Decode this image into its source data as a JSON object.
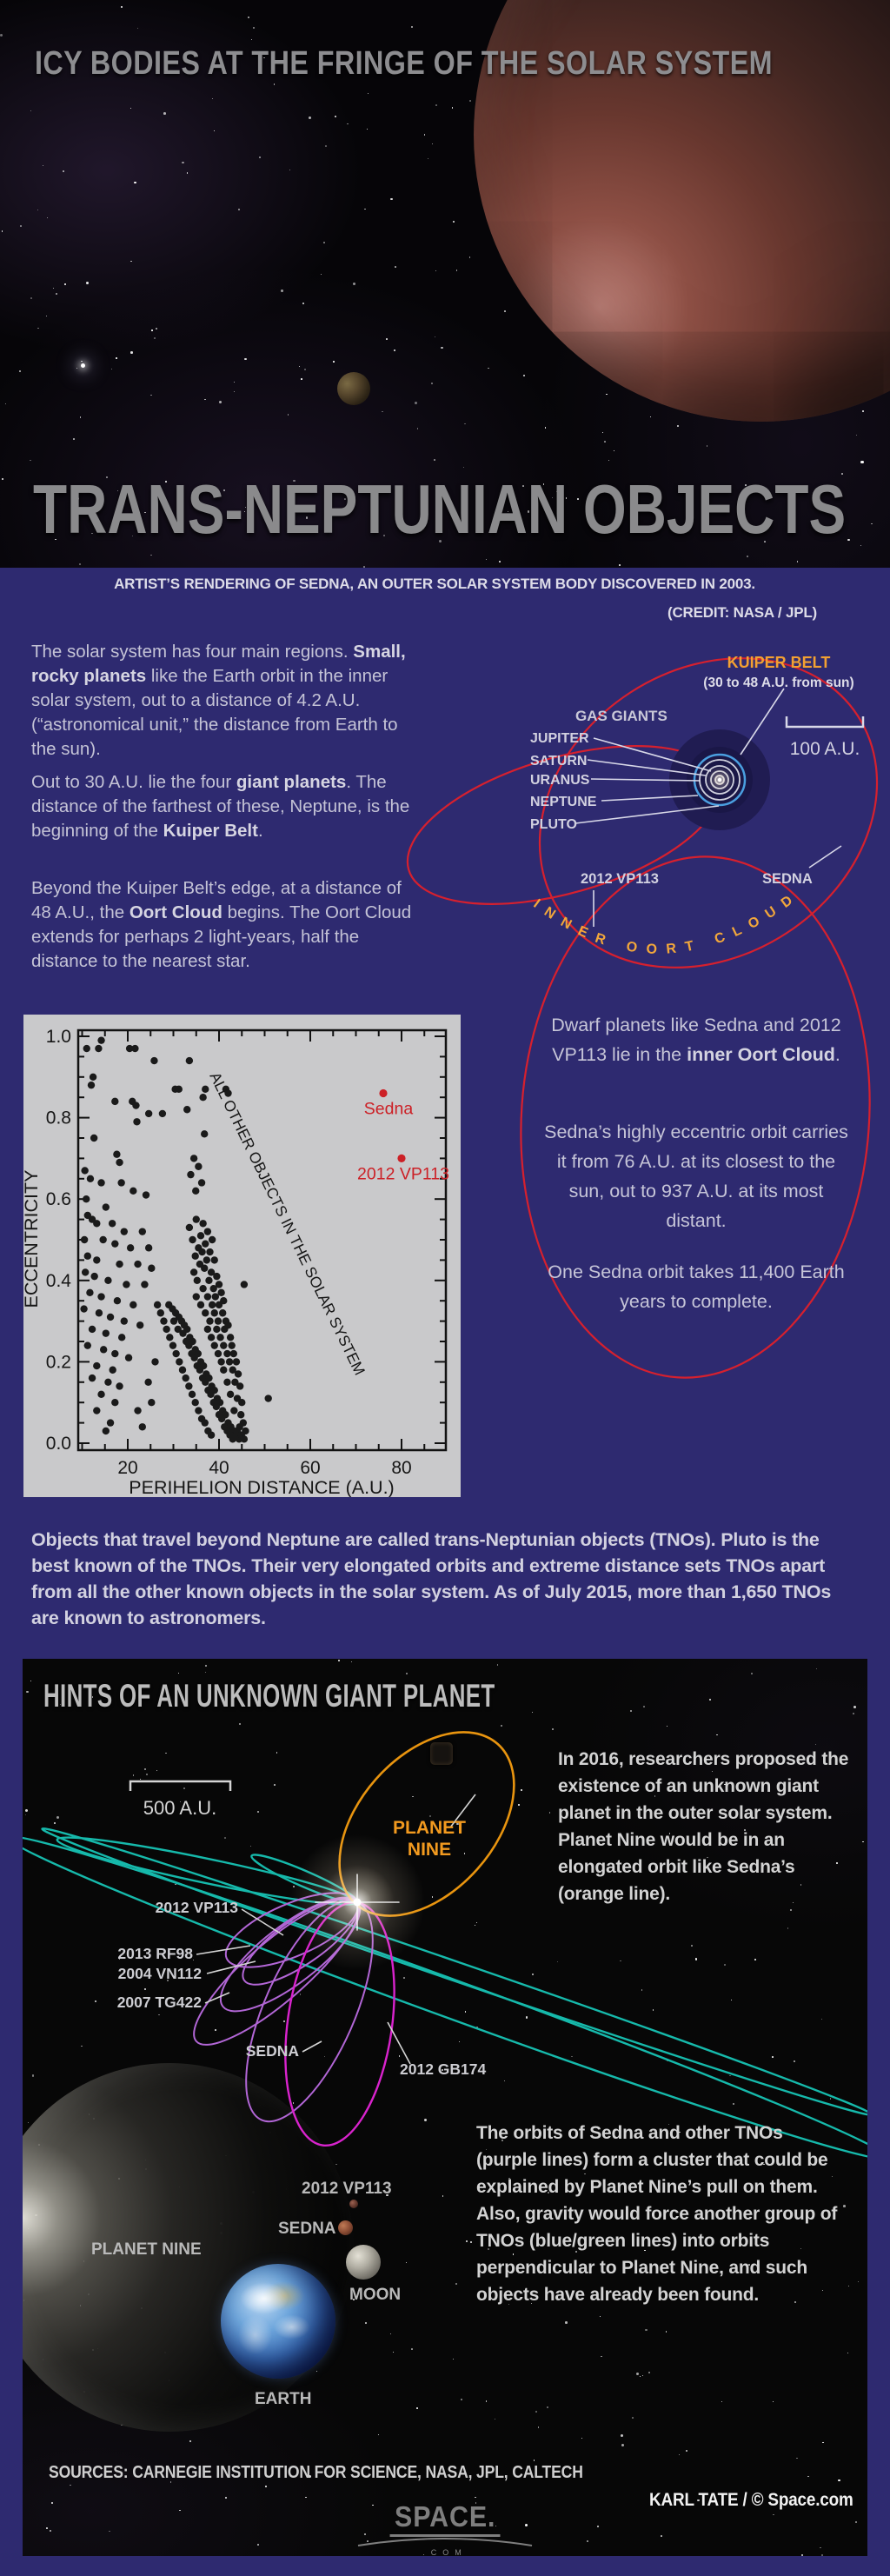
{
  "colors": {
    "background_blue": "#2e2a70",
    "panel_black": "#070707",
    "title_gray": "#8a8a8c",
    "body_gray": "#c4c3d6",
    "accent_orange": "#f2a032",
    "orbit_red": "#d6202e",
    "kuiper_blue": "#4a9fe0",
    "teal_orbit": "#16b9ab",
    "purple_orbit": "#b266d6",
    "magenta_orbit": "#d923cd",
    "plot_bg": "#c9c9cb",
    "plot_red": "#cc2026"
  },
  "hero": {
    "kicker": "ICY BODIES AT THE FRINGE OF THE SOLAR SYSTEM",
    "title": "TRANS-NEPTUNIAN OBJECTS"
  },
  "caption": {
    "line1": "ARTIST’S RENDERING OF SEDNA, AN OUTER SOLAR SYSTEM BODY DISCOVERED IN 2003.",
    "line2": "(CREDIT: NASA / JPL)"
  },
  "intro": {
    "p1": [
      {
        "t": "The solar system has four main regions. "
      },
      {
        "t": "Small, rocky planets",
        "b": true
      },
      {
        "t": " like the Earth orbit in the inner solar system, out to a distance of 4.2 A.U. (“astronomical unit,” the distance from Earth to the sun)."
      }
    ],
    "p2": [
      {
        "t": "Out to 30 A.U. lie the four "
      },
      {
        "t": "giant planets",
        "b": true
      },
      {
        "t": ".  The distance of the farthest of these, Neptune, is the beginning of the "
      },
      {
        "t": "Kuiper Belt",
        "b": true
      },
      {
        "t": "."
      }
    ],
    "p3": [
      {
        "t": "Beyond the Kuiper Belt’s edge, at a distance of 48 A.U., the "
      },
      {
        "t": "Oort Cloud",
        "b": true
      },
      {
        "t": " begins. The Oort Cloud extends for perhaps 2 light-years, half the distance to the nearest star."
      }
    ]
  },
  "d1": {
    "kuiper_belt": "KUIPER BELT",
    "kuiper_sub": "(30 to 48 A.U. from sun)",
    "gas_giants": "GAS GIANTS",
    "planets": [
      "JUPITER",
      "SATURN",
      "URANUS",
      "NEPTUNE",
      "PLUTO"
    ],
    "scale_label": "100 A.U.",
    "vp113": "2012 VP113",
    "sedna": "SEDNA",
    "oort_arc": "INNER  OORT  CLOUD"
  },
  "oort_notes": {
    "n1": [
      {
        "t": "Dwarf planets like Sedna and 2012 VP113 lie in the "
      },
      {
        "t": "inner Oort Cloud",
        "b": true
      },
      {
        "t": "."
      }
    ],
    "n2": "Sedna’s highly eccentric orbit carries it from 76 A.U. at its closest to the sun, out to 937 A.U. at its most distant.",
    "n3": "One Sedna orbit takes 11,400 Earth years to complete."
  },
  "tno_paragraph": "Objects that travel beyond Neptune are called trans-Neptunian objects (TNOs). Pluto is the best known of the TNOs. Their very elongated orbits and extreme distance sets TNOs apart from all the other known objects in the solar system. As of July 2015, more than 1,650 TNOs are known to astronomers.",
  "p9": {
    "title": "HINTS OF AN UNKNOWN GIANT PLANET",
    "scale_label": "500 A.U.",
    "planet_nine_line1": "PLANET",
    "planet_nine_line2": "NINE",
    "intro": "In 2016, researchers proposed the existence of an unknown giant planet in the outer solar system. Planet Nine would be in an elongated orbit like Sedna’s (orange line).",
    "orbit_labels": {
      "vp113": "2012 VP113",
      "rf98": "2013 RF98",
      "vn112": "2004 VN112",
      "tg422": "2007 TG422",
      "sedna": "SEDNA",
      "gb174": "2012 GB174"
    },
    "compare_labels": {
      "vp113": "2012 VP113",
      "sedna": "SEDNA",
      "planet_nine": "PLANET NINE",
      "moon": "MOON",
      "earth": "EARTH"
    },
    "cluster_text": "The orbits of Sedna and other TNOs (purple lines) form a cluster that could be explained by Planet Nine’s pull on them. Also, gravity would force another group of TNOs (blue/green lines) into orbits perpendicular to Planet Nine, and such objects have already been found."
  },
  "footer": {
    "sources": "SOURCES: CARNEGIE INSTITUTION FOR SCIENCE, NASA, JPL, CALTECH",
    "credit": "KARL TATE / © Space.com",
    "logo_main": "SPACE.",
    "logo_sub": ".COM"
  },
  "chart_data": {
    "type": "scatter",
    "title": "",
    "xlabel": "PERIHELION DISTANCE (A.U.)",
    "ylabel": "ECCENTRICITY",
    "xlim": [
      9.1,
      89.7
    ],
    "ylim": [
      0.0,
      1.015
    ],
    "xticks": [
      20,
      40,
      60,
      80
    ],
    "yticks": [
      0.0,
      0.2,
      0.4,
      0.6,
      0.8,
      1.0
    ],
    "grid": false,
    "annotation": "ALL OTHER OBJECTS IN THE SOLAR SYSTEM",
    "highlight": [
      {
        "name": "Sedna",
        "x": 76,
        "y": 0.86
      },
      {
        "name": "2012 VP113",
        "x": 80,
        "y": 0.7
      }
    ],
    "points": [
      [
        29,
        0.34
      ],
      [
        29.8,
        0.33
      ],
      [
        30.5,
        0.32
      ],
      [
        31.2,
        0.31
      ],
      [
        30.1,
        0.3
      ],
      [
        31.8,
        0.3
      ],
      [
        32.4,
        0.29
      ],
      [
        31,
        0.28
      ],
      [
        33,
        0.28
      ],
      [
        32.1,
        0.27
      ],
      [
        33.6,
        0.26
      ],
      [
        32.8,
        0.25
      ],
      [
        34.2,
        0.25
      ],
      [
        33.4,
        0.24
      ],
      [
        34.8,
        0.23
      ],
      [
        34,
        0.22
      ],
      [
        35.4,
        0.22
      ],
      [
        34.6,
        0.21
      ],
      [
        36,
        0.2
      ],
      [
        35.2,
        0.19
      ],
      [
        36.6,
        0.19
      ],
      [
        35.8,
        0.18
      ],
      [
        37.2,
        0.17
      ],
      [
        36.4,
        0.16
      ],
      [
        37.8,
        0.16
      ],
      [
        37,
        0.15
      ],
      [
        38.4,
        0.14
      ],
      [
        37.6,
        0.13
      ],
      [
        39,
        0.13
      ],
      [
        38.2,
        0.12
      ],
      [
        39.6,
        0.11
      ],
      [
        38.8,
        0.1
      ],
      [
        40.2,
        0.1
      ],
      [
        39.4,
        0.09
      ],
      [
        40.8,
        0.08
      ],
      [
        40,
        0.07
      ],
      [
        41.4,
        0.07
      ],
      [
        40.6,
        0.06
      ],
      [
        42,
        0.05
      ],
      [
        41.2,
        0.04
      ],
      [
        42.6,
        0.04
      ],
      [
        41.8,
        0.03
      ],
      [
        43.2,
        0.03
      ],
      [
        42.4,
        0.02
      ],
      [
        43.8,
        0.02
      ],
      [
        43,
        0.01
      ],
      [
        44.4,
        0.01
      ],
      [
        44,
        0.03
      ],
      [
        44.9,
        0.02
      ],
      [
        45.5,
        0.01
      ],
      [
        26.5,
        0.34
      ],
      [
        27.2,
        0.32
      ],
      [
        27.9,
        0.3
      ],
      [
        28.5,
        0.28
      ],
      [
        29.2,
        0.26
      ],
      [
        29.9,
        0.24
      ],
      [
        30.6,
        0.22
      ],
      [
        31.3,
        0.2
      ],
      [
        32,
        0.18
      ],
      [
        32.7,
        0.16
      ],
      [
        33.4,
        0.14
      ],
      [
        34.1,
        0.12
      ],
      [
        34.8,
        0.1
      ],
      [
        35.5,
        0.08
      ],
      [
        36.2,
        0.06
      ],
      [
        36.9,
        0.05
      ],
      [
        37.6,
        0.03
      ],
      [
        38.3,
        0.02
      ],
      [
        33.5,
        0.53
      ],
      [
        35,
        0.55
      ],
      [
        36.5,
        0.54
      ],
      [
        34.2,
        0.5
      ],
      [
        36,
        0.51
      ],
      [
        37.5,
        0.52
      ],
      [
        35.5,
        0.48
      ],
      [
        37,
        0.49
      ],
      [
        38.5,
        0.5
      ],
      [
        34.8,
        0.46
      ],
      [
        36.3,
        0.47
      ],
      [
        38,
        0.47
      ],
      [
        35.8,
        0.44
      ],
      [
        37.3,
        0.45
      ],
      [
        39,
        0.45
      ],
      [
        34.5,
        0.42
      ],
      [
        36.8,
        0.43
      ],
      [
        38.3,
        0.42
      ],
      [
        35.2,
        0.4
      ],
      [
        37.8,
        0.4
      ],
      [
        39.5,
        0.41
      ],
      [
        36.5,
        0.38
      ],
      [
        38.8,
        0.38
      ],
      [
        40,
        0.39
      ],
      [
        35,
        0.36
      ],
      [
        37.5,
        0.36
      ],
      [
        39.2,
        0.36
      ],
      [
        40.5,
        0.37
      ],
      [
        36,
        0.34
      ],
      [
        38.5,
        0.34
      ],
      [
        40,
        0.34
      ],
      [
        41,
        0.35
      ],
      [
        37,
        0.32
      ],
      [
        39,
        0.32
      ],
      [
        40.8,
        0.32
      ],
      [
        38,
        0.3
      ],
      [
        39.8,
        0.3
      ],
      [
        41.5,
        0.3
      ],
      [
        37.5,
        0.28
      ],
      [
        39.5,
        0.28
      ],
      [
        41.2,
        0.28
      ],
      [
        42,
        0.29
      ],
      [
        38.3,
        0.26
      ],
      [
        40.3,
        0.26
      ],
      [
        42.5,
        0.26
      ],
      [
        39,
        0.24
      ],
      [
        41,
        0.24
      ],
      [
        42.8,
        0.24
      ],
      [
        39.8,
        0.22
      ],
      [
        41.8,
        0.22
      ],
      [
        43.2,
        0.22
      ],
      [
        40.5,
        0.2
      ],
      [
        42.3,
        0.2
      ],
      [
        43.8,
        0.2
      ],
      [
        41,
        0.18
      ],
      [
        43,
        0.18
      ],
      [
        44.2,
        0.17
      ],
      [
        41.8,
        0.15
      ],
      [
        43.5,
        0.15
      ],
      [
        44.6,
        0.14
      ],
      [
        42.5,
        0.12
      ],
      [
        44,
        0.11
      ],
      [
        45,
        0.1
      ],
      [
        43.3,
        0.08
      ],
      [
        44.8,
        0.07
      ],
      [
        45.3,
        0.05
      ],
      [
        44.5,
        0.04
      ],
      [
        45.8,
        0.03
      ],
      [
        11,
        0.97
      ],
      [
        14.2,
        0.99
      ],
      [
        13.6,
        0.97
      ],
      [
        20.4,
        0.97
      ],
      [
        21.6,
        0.97
      ],
      [
        25.8,
        0.94
      ],
      [
        12.4,
        0.9
      ],
      [
        12,
        0.88
      ],
      [
        30.4,
        0.87
      ],
      [
        31.2,
        0.87
      ],
      [
        17.2,
        0.84
      ],
      [
        21,
        0.84
      ],
      [
        21.8,
        0.83
      ],
      [
        24.6,
        0.81
      ],
      [
        27.6,
        0.81
      ],
      [
        22,
        0.79
      ],
      [
        12.6,
        0.75
      ],
      [
        17.6,
        0.71
      ],
      [
        18.2,
        0.69
      ],
      [
        10.6,
        0.67
      ],
      [
        11.8,
        0.65
      ],
      [
        14.2,
        0.64
      ],
      [
        18.6,
        0.64
      ],
      [
        21.2,
        0.62
      ],
      [
        24,
        0.61
      ],
      [
        10.9,
        0.6
      ],
      [
        15.2,
        0.58
      ],
      [
        11.2,
        0.56
      ],
      [
        12.2,
        0.55
      ],
      [
        13.2,
        0.54
      ],
      [
        16.6,
        0.54
      ],
      [
        19.2,
        0.52
      ],
      [
        23.2,
        0.52
      ],
      [
        10.5,
        0.5
      ],
      [
        14.6,
        0.5
      ],
      [
        17.2,
        0.49
      ],
      [
        20.6,
        0.48
      ],
      [
        24.6,
        0.48
      ],
      [
        11.2,
        0.46
      ],
      [
        13.2,
        0.45
      ],
      [
        18.2,
        0.44
      ],
      [
        22.2,
        0.44
      ],
      [
        25.2,
        0.43
      ],
      [
        10.7,
        0.42
      ],
      [
        12.7,
        0.41
      ],
      [
        15.7,
        0.4
      ],
      [
        19.7,
        0.39
      ],
      [
        23.7,
        0.39
      ],
      [
        11.7,
        0.37
      ],
      [
        14.2,
        0.36
      ],
      [
        17.7,
        0.35
      ],
      [
        21.2,
        0.34
      ],
      [
        10.4,
        0.33
      ],
      [
        13.7,
        0.32
      ],
      [
        16.2,
        0.31
      ],
      [
        19.2,
        0.3
      ],
      [
        22.7,
        0.29
      ],
      [
        12.2,
        0.28
      ],
      [
        15.2,
        0.27
      ],
      [
        18.7,
        0.26
      ],
      [
        11.2,
        0.24
      ],
      [
        14.7,
        0.23
      ],
      [
        17.2,
        0.22
      ],
      [
        20.2,
        0.21
      ],
      [
        13.2,
        0.19
      ],
      [
        16.7,
        0.18
      ],
      [
        12.2,
        0.16
      ],
      [
        15.7,
        0.15
      ],
      [
        18.2,
        0.14
      ],
      [
        14.2,
        0.12
      ],
      [
        17.2,
        0.1
      ],
      [
        13.2,
        0.08
      ],
      [
        16.2,
        0.05
      ],
      [
        15.2,
        0.03
      ],
      [
        23.2,
        0.04
      ],
      [
        22.2,
        0.08
      ],
      [
        24.5,
        0.15
      ],
      [
        26,
        0.2
      ],
      [
        25.2,
        0.1
      ],
      [
        33.5,
        0.94
      ],
      [
        36.5,
        0.85
      ],
      [
        37,
        0.87
      ],
      [
        33,
        0.82
      ],
      [
        36.8,
        0.76
      ],
      [
        34.5,
        0.7
      ],
      [
        35.5,
        0.68
      ],
      [
        33.8,
        0.66
      ],
      [
        36.2,
        0.64
      ],
      [
        34.9,
        0.62
      ],
      [
        41.5,
        0.87
      ],
      [
        42,
        0.86
      ],
      [
        45.5,
        0.39
      ],
      [
        50.8,
        0.11
      ]
    ]
  }
}
